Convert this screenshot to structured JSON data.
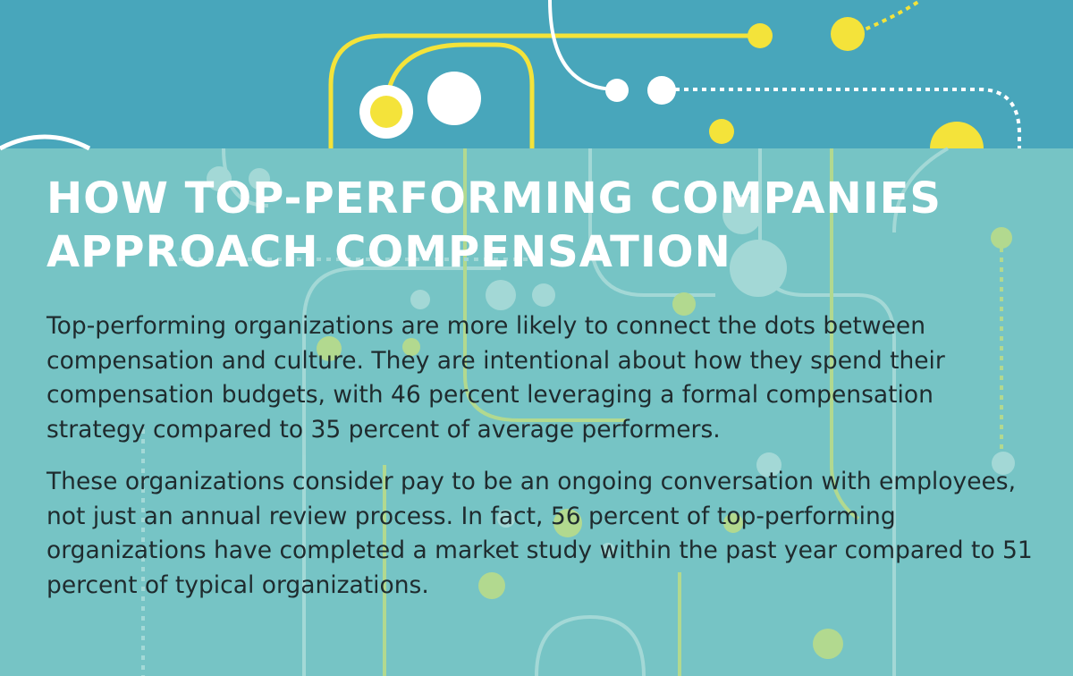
{
  "colors": {
    "top_band": "#48a6bb",
    "panel": "#76c4c5",
    "yellow": "#f4e33a",
    "white": "#ffffff",
    "faint_line": "#a8dbd8",
    "faint_green": "#b9dc8a",
    "text": "#1f2b2e"
  },
  "heading": {
    "line1": "HOW TOP-PERFORMING COMPANIES",
    "line2": "APPROACH COMPENSATION"
  },
  "paragraphs": [
    "Top-performing organizations are more likely to connect the dots between compensation and culture. They are intentional about how they spend their compensation budgets, with 46 percent leveraging a formal compensation strategy compared to 35 percent of average performers.",
    "These organizations consider pay to be an ongoing conversation with employees, not just an annual review process. In fact, 56 percent of top-performing organizations have completed a market study within the past year compared to 51 percent of typical organizations."
  ]
}
